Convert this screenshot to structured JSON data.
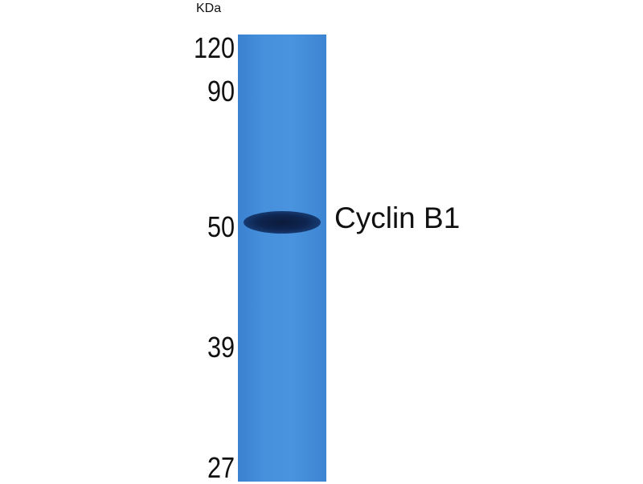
{
  "figure": {
    "unit_label": "KDa",
    "markers": [
      {
        "label": "120",
        "kda": 120
      },
      {
        "label": "90",
        "kda": 90
      },
      {
        "label": "50",
        "kda": 50
      },
      {
        "label": "39",
        "kda": 39
      },
      {
        "label": "27",
        "kda": 27
      }
    ],
    "band_label": "Cyclin B1",
    "colors": {
      "membrane": "#4690dc",
      "band": "#0e2550"
    }
  }
}
